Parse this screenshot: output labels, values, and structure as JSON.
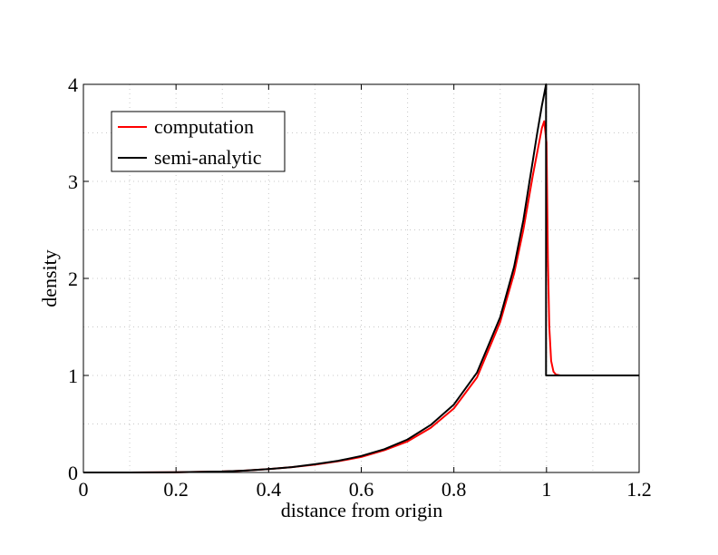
{
  "chart_data": {
    "type": "line",
    "title": "",
    "xlabel": "distance from origin",
    "ylabel": "density",
    "xlim": [
      0,
      1.2
    ],
    "ylim": [
      0,
      4
    ],
    "xticks": [
      0,
      0.2,
      0.4,
      0.6,
      0.8,
      1,
      1.2
    ],
    "xtick_labels": [
      "0",
      "0.2",
      "0.4",
      "0.6",
      "0.8",
      "1",
      "1.2"
    ],
    "yticks": [
      0,
      1,
      2,
      3,
      4
    ],
    "ytick_labels": [
      "0",
      "1",
      "2",
      "3",
      "4"
    ],
    "grid": true,
    "legend_position": "top-left",
    "series": [
      {
        "name": "computation",
        "color": "#ff0000",
        "x": [
          0,
          0.1,
          0.2,
          0.3,
          0.35,
          0.4,
          0.45,
          0.5,
          0.55,
          0.6,
          0.65,
          0.7,
          0.75,
          0.8,
          0.85,
          0.9,
          0.93,
          0.95,
          0.97,
          0.98,
          0.99,
          0.995,
          1.0,
          1.003,
          1.006,
          1.01,
          1.015,
          1.02,
          1.03,
          1.05,
          1.1,
          1.15,
          1.2
        ],
        "y": [
          0,
          0,
          0.002,
          0.01,
          0.02,
          0.035,
          0.055,
          0.08,
          0.115,
          0.16,
          0.23,
          0.32,
          0.46,
          0.66,
          0.98,
          1.55,
          2.05,
          2.5,
          3.05,
          3.3,
          3.55,
          3.62,
          3.4,
          2.2,
          1.5,
          1.15,
          1.04,
          1.01,
          1.0,
          1.0,
          1.0,
          1.0,
          1.0
        ]
      },
      {
        "name": "semi-analytic",
        "color": "#000000",
        "x": [
          0,
          0.1,
          0.2,
          0.3,
          0.35,
          0.4,
          0.45,
          0.5,
          0.55,
          0.6,
          0.65,
          0.7,
          0.75,
          0.8,
          0.85,
          0.9,
          0.93,
          0.95,
          0.97,
          0.98,
          0.99,
          0.995,
          0.999,
          0.999,
          1.0,
          1.05,
          1.1,
          1.15,
          1.2
        ],
        "y": [
          0,
          0,
          0.002,
          0.01,
          0.02,
          0.035,
          0.055,
          0.085,
          0.12,
          0.17,
          0.24,
          0.34,
          0.49,
          0.7,
          1.03,
          1.6,
          2.12,
          2.6,
          3.2,
          3.5,
          3.78,
          3.9,
          4.0,
          1.0,
          1.0,
          1.0,
          1.0,
          1.0,
          1.0
        ]
      }
    ]
  }
}
